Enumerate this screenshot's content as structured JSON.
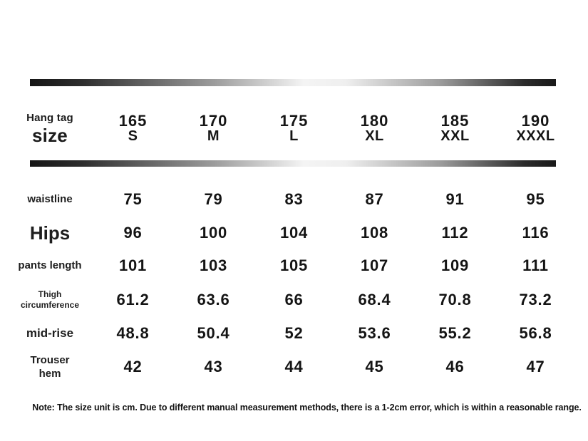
{
  "header": {
    "row_label": {
      "line1": "Hang tag",
      "line2": "size"
    },
    "columns": [
      {
        "height": "165",
        "size": "S"
      },
      {
        "height": "170",
        "size": "M"
      },
      {
        "height": "175",
        "size": "L"
      },
      {
        "height": "180",
        "size": "XL"
      },
      {
        "height": "185",
        "size": "XXL"
      },
      {
        "height": "190",
        "size": "XXXL"
      }
    ]
  },
  "rows": [
    {
      "label_lines": [
        "waistline"
      ],
      "values": [
        "75",
        "79",
        "83",
        "87",
        "91",
        "95"
      ]
    },
    {
      "label_lines": [
        "Hips"
      ],
      "values": [
        "96",
        "100",
        "104",
        "108",
        "112",
        "116"
      ]
    },
    {
      "label_lines": [
        "pants length"
      ],
      "values": [
        "101",
        "103",
        "105",
        "107",
        "109",
        "111"
      ]
    },
    {
      "label_lines": [
        "Thigh",
        "circumference"
      ],
      "values": [
        "61.2",
        "63.6",
        "66",
        "68.4",
        "70.8",
        "73.2"
      ]
    },
    {
      "label_lines": [
        "mid-rise"
      ],
      "values": [
        "48.8",
        "50.4",
        "52",
        "53.6",
        "55.2",
        "56.8"
      ]
    },
    {
      "label_lines": [
        "Trouser",
        "hem"
      ],
      "values": [
        "42",
        "43",
        "44",
        "45",
        "46",
        "47"
      ]
    }
  ],
  "note": "Note: The size unit is cm. Due to different manual measurement methods, there is a 1-2cm error, which is within a reasonable range.",
  "colors": {
    "text": "#1b1b1b",
    "bar_dark": "#151515",
    "bar_light": "#f4f4f4"
  }
}
